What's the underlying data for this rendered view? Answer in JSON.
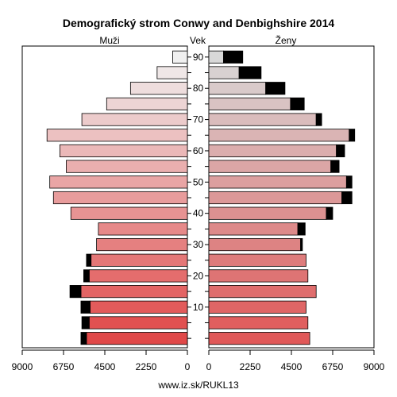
{
  "chart_data": {
    "type": "bar",
    "title": "Demografický strom Conwy and Denbighshire 2014",
    "left_label": "Muži",
    "center_label": "Vek",
    "right_label": "Ženy",
    "footer": "www.iz.sk/RUKL13",
    "xlim": [
      0,
      9000
    ],
    "x_ticks": [
      0,
      2250,
      4500,
      6750,
      9000
    ],
    "x_tick_labels_left": [
      "9000",
      "6750",
      "4500",
      "2250",
      "0"
    ],
    "x_tick_labels_right": [
      "0",
      "2250",
      "4500",
      "6750",
      "9000"
    ],
    "y_ticks": [
      10,
      20,
      30,
      40,
      50,
      60,
      70,
      80,
      90
    ],
    "age_groups": [
      "0-4",
      "5-9",
      "10-14",
      "15-19",
      "20-24",
      "25-29",
      "30-34",
      "35-39",
      "40-44",
      "45-49",
      "50-54",
      "55-59",
      "60-64",
      "65-69",
      "70-74",
      "75-79",
      "80-84",
      "85-89",
      "90+"
    ],
    "males": {
      "base": [
        5500,
        5350,
        5300,
        5800,
        5350,
        5250,
        4950,
        4850,
        6350,
        7300,
        7500,
        6600,
        6950,
        7650,
        5750,
        4400,
        3100,
        1650,
        800
      ],
      "excess": [
        300,
        400,
        500,
        600,
        300,
        250,
        0,
        0,
        0,
        0,
        0,
        0,
        0,
        0,
        0,
        0,
        0,
        0,
        0
      ]
    },
    "females": {
      "base": [
        5500,
        5400,
        5300,
        5850,
        5400,
        5300,
        5000,
        4850,
        6400,
        7250,
        7500,
        6650,
        6950,
        7650,
        5850,
        4450,
        3100,
        1650,
        800
      ],
      "excess": [
        0,
        0,
        0,
        0,
        0,
        0,
        100,
        400,
        350,
        550,
        300,
        450,
        450,
        300,
        300,
        750,
        1050,
        1200,
        1050
      ]
    },
    "colors": {
      "male_young": "#e04848",
      "male_old": "#f0f0f0",
      "female_young": "#e05858",
      "female_old": "#d8d8d8",
      "excess": "#000000"
    }
  }
}
